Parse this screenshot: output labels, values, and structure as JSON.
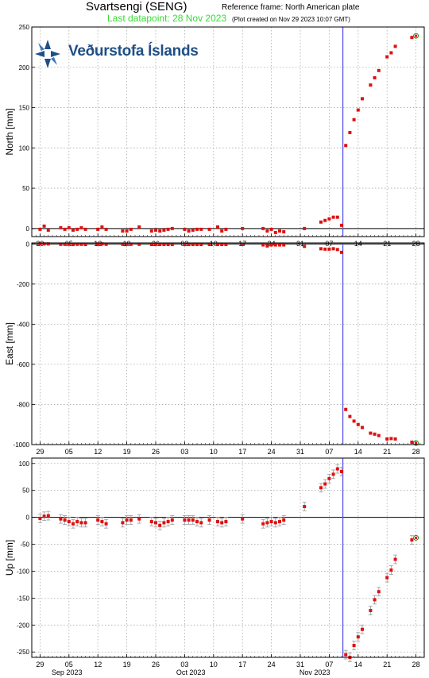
{
  "header": {
    "title": "Svartsengi (SENG)",
    "reference": "Reference frame: North American plate",
    "last_datapoint": "Last datapoint: 28 Nov 2023",
    "created": "(Plot created on Nov 29 2023 10:07 GMT)"
  },
  "logo": {
    "text": "Veðurstofa Íslands",
    "icon": "imo-logo-icon"
  },
  "colors": {
    "data": "#dd1111",
    "error": "#999999",
    "event_line": "#5555ee",
    "last": "#228822",
    "grid": "#aaaaaa"
  },
  "chart_data": [
    {
      "type": "scatter",
      "ylabel": "North [mm]",
      "ylim": [
        -10,
        250
      ],
      "yticks": [
        0,
        50,
        100,
        150,
        200,
        250
      ],
      "x_unit": "day offset from 2023-08-29",
      "xlim": [
        -2,
        93
      ],
      "xticks": [
        0,
        7,
        14,
        21,
        28,
        35,
        42,
        49,
        56,
        63,
        70,
        77,
        84,
        91
      ],
      "xtick_labels": [
        "29",
        "05",
        "12",
        "19",
        "26",
        "03",
        "10",
        "17",
        "24",
        "31",
        "07",
        "14",
        "21",
        "28"
      ],
      "event_x": 73.3,
      "grid": true,
      "last_point": [
        91,
        239
      ],
      "points": [
        [
          0,
          -1
        ],
        [
          1,
          3
        ],
        [
          2,
          -2
        ],
        [
          5,
          1
        ],
        [
          6,
          -1
        ],
        [
          7,
          1
        ],
        [
          8,
          -2
        ],
        [
          9,
          -1
        ],
        [
          10,
          1
        ],
        [
          11,
          -1
        ],
        [
          14,
          -1
        ],
        [
          15,
          2
        ],
        [
          16,
          -1
        ],
        [
          20,
          -3
        ],
        [
          21,
          -3
        ],
        [
          22,
          -1
        ],
        [
          24,
          2
        ],
        [
          27,
          -3
        ],
        [
          28,
          -2
        ],
        [
          29,
          -3
        ],
        [
          30,
          -2
        ],
        [
          31,
          -1
        ],
        [
          32,
          0
        ],
        [
          35,
          -1
        ],
        [
          36,
          -3
        ],
        [
          37,
          -2
        ],
        [
          38,
          -1
        ],
        [
          39,
          -1
        ],
        [
          41,
          -1
        ],
        [
          43,
          2
        ],
        [
          44,
          -3
        ],
        [
          45,
          -1
        ],
        [
          49,
          0
        ],
        [
          54,
          0
        ],
        [
          55,
          -3
        ],
        [
          56,
          -1
        ],
        [
          57,
          -5
        ],
        [
          58,
          -3
        ],
        [
          59,
          -4
        ],
        [
          64,
          0
        ],
        [
          68,
          8
        ],
        [
          69,
          10
        ],
        [
          70,
          12
        ],
        [
          71,
          14
        ],
        [
          72,
          14
        ],
        [
          73,
          4
        ],
        [
          74,
          103
        ],
        [
          75,
          119
        ],
        [
          76,
          135
        ],
        [
          77,
          147
        ],
        [
          78,
          161
        ],
        [
          80,
          178
        ],
        [
          81,
          187
        ],
        [
          82,
          196
        ],
        [
          84,
          213
        ],
        [
          85,
          218
        ],
        [
          86,
          226
        ],
        [
          90,
          237
        ]
      ]
    },
    {
      "type": "scatter",
      "ylabel": "East [mm]",
      "ylim": [
        -1000,
        5
      ],
      "yticks": [
        0,
        -200,
        -400,
        -600,
        -800,
        -1000
      ],
      "x_unit": "day offset from 2023-08-29",
      "xlim": [
        -2,
        93
      ],
      "xticks": [
        0,
        7,
        14,
        21,
        28,
        35,
        42,
        49,
        56,
        63,
        70,
        77,
        84,
        91
      ],
      "xtick_labels": [
        "29",
        "05",
        "12",
        "19",
        "26",
        "03",
        "10",
        "17",
        "24",
        "31",
        "07",
        "14",
        "21",
        "28"
      ],
      "event_x": 73.3,
      "grid": true,
      "last_point": [
        91,
        -992
      ],
      "points": [
        [
          0,
          0
        ],
        [
          1,
          0
        ],
        [
          2,
          0
        ],
        [
          5,
          -2
        ],
        [
          6,
          -2
        ],
        [
          7,
          -2
        ],
        [
          8,
          -3
        ],
        [
          9,
          -2
        ],
        [
          10,
          -2
        ],
        [
          11,
          -3
        ],
        [
          14,
          0
        ],
        [
          15,
          0
        ],
        [
          16,
          -2
        ],
        [
          20,
          -2
        ],
        [
          21,
          -2
        ],
        [
          22,
          -2
        ],
        [
          24,
          -2
        ],
        [
          27,
          -3
        ],
        [
          28,
          -2
        ],
        [
          29,
          -3
        ],
        [
          30,
          -3
        ],
        [
          31,
          -3
        ],
        [
          32,
          -3
        ],
        [
          35,
          -3
        ],
        [
          36,
          -3
        ],
        [
          37,
          -3
        ],
        [
          38,
          -3
        ],
        [
          39,
          -3
        ],
        [
          41,
          -3
        ],
        [
          43,
          -3
        ],
        [
          44,
          -3
        ],
        [
          45,
          -3
        ],
        [
          49,
          -3
        ],
        [
          54,
          -5
        ],
        [
          55,
          -10
        ],
        [
          56,
          -5
        ],
        [
          57,
          -5
        ],
        [
          58,
          -5
        ],
        [
          59,
          -5
        ],
        [
          64,
          -12
        ],
        [
          68,
          -24
        ],
        [
          69,
          -26
        ],
        [
          70,
          -26
        ],
        [
          71,
          -24
        ],
        [
          72,
          -28
        ],
        [
          73,
          -42
        ],
        [
          74,
          -825
        ],
        [
          75,
          -860
        ],
        [
          76,
          -883
        ],
        [
          77,
          -900
        ],
        [
          78,
          -915
        ],
        [
          80,
          -943
        ],
        [
          81,
          -948
        ],
        [
          82,
          -955
        ],
        [
          84,
          -972
        ],
        [
          85,
          -970
        ],
        [
          86,
          -972
        ],
        [
          90,
          -988
        ]
      ]
    },
    {
      "type": "scatter",
      "ylabel": "Up [mm]",
      "ylim": [
        -260,
        110
      ],
      "yticks": [
        100,
        50,
        0,
        -50,
        -100,
        -150,
        -200,
        -250
      ],
      "x_unit": "day offset from 2023-08-29",
      "xlim": [
        -2,
        93
      ],
      "xticks": [
        0,
        7,
        14,
        21,
        28,
        35,
        42,
        49,
        56,
        63,
        70,
        77,
        84,
        91
      ],
      "xtick_labels": [
        "29",
        "05",
        "12",
        "19",
        "26",
        "03",
        "10",
        "17",
        "24",
        "31",
        "07",
        "14",
        "21",
        "28"
      ],
      "month_labels": [
        {
          "x": 6.5,
          "label": "Sep 2023"
        },
        {
          "x": 36.5,
          "label": "Oct 2023"
        },
        {
          "x": 66.5,
          "label": "Nov 2023"
        }
      ],
      "event_x": 73.3,
      "grid": true,
      "error_mm": 8,
      "last_point": [
        91,
        -38
      ],
      "points": [
        [
          0,
          -2
        ],
        [
          1,
          2
        ],
        [
          2,
          3
        ],
        [
          5,
          -3
        ],
        [
          6,
          -5
        ],
        [
          7,
          -8
        ],
        [
          8,
          -12
        ],
        [
          9,
          -8
        ],
        [
          10,
          -10
        ],
        [
          11,
          -10
        ],
        [
          14,
          -5
        ],
        [
          15,
          -8
        ],
        [
          16,
          -12
        ],
        [
          20,
          -10
        ],
        [
          21,
          -5
        ],
        [
          22,
          -5
        ],
        [
          24,
          -3
        ],
        [
          27,
          -8
        ],
        [
          28,
          -10
        ],
        [
          29,
          -15
        ],
        [
          30,
          -10
        ],
        [
          31,
          -8
        ],
        [
          32,
          -5
        ],
        [
          35,
          -5
        ],
        [
          36,
          -5
        ],
        [
          37,
          -5
        ],
        [
          38,
          -8
        ],
        [
          39,
          -10
        ],
        [
          41,
          -5
        ],
        [
          43,
          -8
        ],
        [
          44,
          -10
        ],
        [
          45,
          -8
        ],
        [
          49,
          -3
        ],
        [
          54,
          -12
        ],
        [
          55,
          -10
        ],
        [
          56,
          -8
        ],
        [
          57,
          -10
        ],
        [
          58,
          -8
        ],
        [
          59,
          -5
        ],
        [
          64,
          20
        ],
        [
          68,
          55
        ],
        [
          69,
          62
        ],
        [
          70,
          72
        ],
        [
          71,
          80
        ],
        [
          72,
          90
        ],
        [
          73,
          85
        ],
        [
          74,
          -255
        ],
        [
          75,
          -260
        ],
        [
          76,
          -238
        ],
        [
          77,
          -222
        ],
        [
          78,
          -208
        ],
        [
          80,
          -173
        ],
        [
          81,
          -153
        ],
        [
          82,
          -138
        ],
        [
          84,
          -112
        ],
        [
          85,
          -98
        ],
        [
          86,
          -78
        ],
        [
          90,
          -42
        ]
      ]
    }
  ]
}
